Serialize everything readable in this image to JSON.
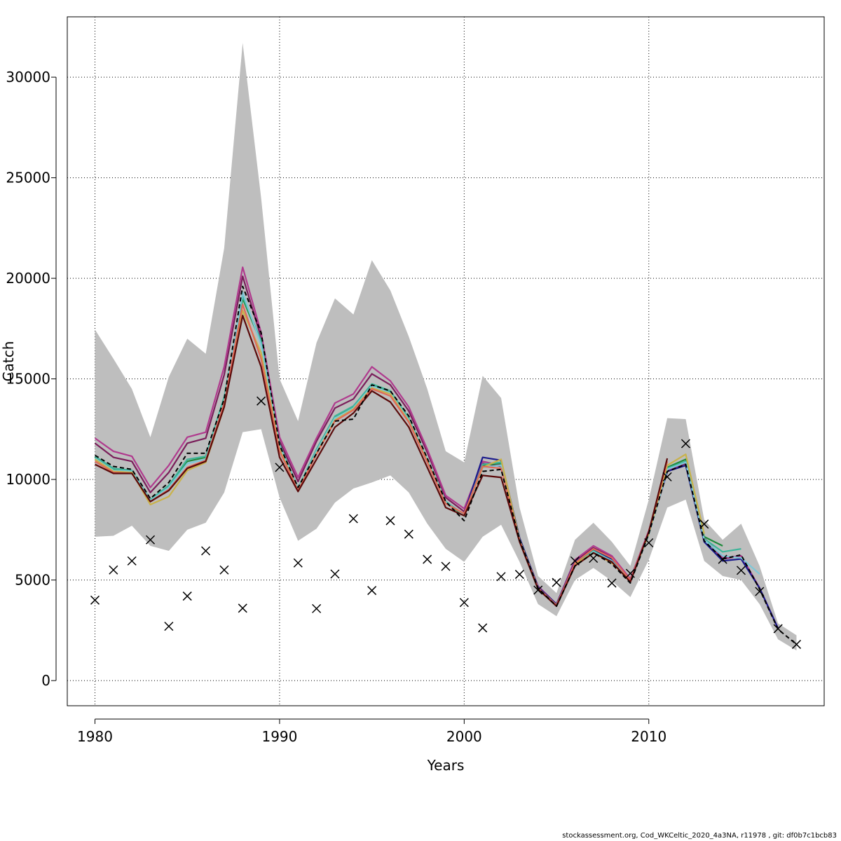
{
  "chart_data": {
    "type": "line",
    "xlabel": "Years",
    "ylabel": "Catch",
    "xlim": [
      1978.5,
      2019.5
    ],
    "ylim": [
      -1250,
      33000
    ],
    "x_ticks": [
      1980,
      1990,
      2000,
      2010
    ],
    "y_ticks": [
      0,
      5000,
      10000,
      15000,
      20000,
      25000,
      30000
    ],
    "x_tick_labels": [
      "1980",
      "1990",
      "2000",
      "2010"
    ],
    "y_tick_labels": [
      "0",
      "5000",
      "10000",
      "15000",
      "20000",
      "25000",
      "30000"
    ],
    "grid": true,
    "confidence_band": {
      "years": [
        1980,
        1981,
        1982,
        1983,
        1984,
        1985,
        1986,
        1987,
        1988,
        1989,
        1990,
        1991,
        1992,
        1993,
        1994,
        1995,
        1996,
        1997,
        1998,
        1999,
        2000,
        2001,
        2002,
        2003,
        2004,
        2005,
        2006,
        2007,
        2008,
        2009,
        2010,
        2011,
        2012,
        2013,
        2014,
        2015,
        2016,
        2017,
        2018
      ],
      "upper": [
        17450,
        16000,
        14500,
        12100,
        15100,
        17000,
        16250,
        21500,
        31700,
        24000,
        15000,
        12900,
        16800,
        19000,
        18200,
        20900,
        19400,
        17100,
        14500,
        11400,
        10850,
        15150,
        14050,
        8600,
        5200,
        4350,
        7000,
        7850,
        6900,
        5700,
        9000,
        13050,
        13000,
        8000,
        7000,
        7800,
        5700,
        2850,
        2250
      ],
      "lower": [
        7150,
        7200,
        7700,
        6700,
        6450,
        7500,
        7850,
        9350,
        12350,
        12500,
        9100,
        6950,
        7550,
        8850,
        9550,
        9850,
        10200,
        9350,
        7800,
        6550,
        5900,
        7150,
        7750,
        5900,
        3800,
        3200,
        5000,
        5600,
        4950,
        4150,
        6000,
        8600,
        9000,
        5950,
        5200,
        5000,
        3800,
        2050,
        1500
      ]
    },
    "observations": {
      "years": [
        1980,
        1981,
        1982,
        1983,
        1984,
        1985,
        1986,
        1987,
        1988,
        1989,
        1990,
        1991,
        1992,
        1993,
        1994,
        1995,
        1996,
        1997,
        1998,
        1999,
        2000,
        2001,
        2002,
        2003,
        2004,
        2005,
        2006,
        2007,
        2008,
        2009,
        2010,
        2011,
        2012,
        2013,
        2014,
        2015,
        2016,
        2017,
        2018
      ],
      "values": [
        4000,
        5500,
        5950,
        7000,
        2700,
        4200,
        6450,
        5500,
        3600,
        13900,
        10600,
        5850,
        3580,
        5300,
        8050,
        4480,
        7950,
        7280,
        6030,
        5680,
        3880,
        2620,
        5170,
        5280,
        4500,
        4880,
        5950,
        6080,
        4850,
        5330,
        6850,
        10130,
        11780,
        7780,
        6030,
        5480,
        4430,
        2580,
        1800
      ]
    },
    "series": [
      {
        "color": "#000000",
        "dashed": true,
        "years": [
          1980,
          1981,
          1982,
          1983,
          1984,
          1985,
          1986,
          1987,
          1988,
          1989,
          1990,
          1991,
          1992,
          1993,
          1994,
          1995,
          1996,
          1997,
          1998,
          1999,
          2000,
          2001,
          2002,
          2003,
          2004,
          2005,
          2006,
          2007,
          2008,
          2009,
          2010,
          2011,
          2012,
          2013,
          2014,
          2015,
          2016,
          2017,
          2018
        ],
        "values": [
          11200,
          10650,
          10500,
          9050,
          9850,
          11300,
          11300,
          14000,
          19600,
          17300,
          11700,
          9600,
          11300,
          12900,
          13000,
          14700,
          14400,
          13150,
          11050,
          8900,
          7950,
          10400,
          10500,
          7000,
          4600,
          3700,
          5700,
          6350,
          5800,
          4850,
          7300,
          10400,
          10750,
          6950,
          6050,
          6250,
          4550,
          2550,
          1800
        ]
      },
      {
        "color": "#7a1e5a",
        "dashed": false,
        "years": [
          1980,
          1981,
          1982,
          1983,
          1984,
          1985,
          1986,
          1987,
          1988,
          1989,
          1990,
          1991,
          1992,
          1993,
          1994,
          1995,
          1996,
          1997,
          1998,
          1999,
          2000,
          2001,
          2002,
          2003,
          2004,
          2005,
          2006,
          2007,
          2008,
          2009,
          2010,
          2011,
          2012,
          2013,
          2014,
          2015,
          2016,
          2017
        ],
        "values": [
          11800,
          11100,
          10900,
          9350,
          10350,
          11800,
          12050,
          15200,
          20100,
          17050,
          11900,
          9900,
          11900,
          13550,
          14000,
          15250,
          14700,
          13400,
          11350,
          9100,
          8400,
          10800,
          10650,
          7000,
          4650,
          3800,
          5950,
          6600,
          6150,
          5050,
          7400,
          10400,
          10800,
          7050,
          6050,
          6200,
          4600,
          2600
        ]
      },
      {
        "color": "#b03a8e",
        "dashed": false,
        "years": [
          1980,
          1981,
          1982,
          1983,
          1984,
          1985,
          1986,
          1987,
          1988,
          1989,
          1990,
          1991,
          1992,
          1993,
          1994,
          1995,
          1996,
          1997,
          1998,
          1999,
          2000,
          2001,
          2002,
          2003,
          2004,
          2005,
          2006,
          2007,
          2008,
          2009,
          2010,
          2011,
          2012,
          2013,
          2014,
          2015,
          2016,
          2017
        ],
        "values": [
          12050,
          11400,
          11150,
          9600,
          10700,
          12100,
          12350,
          15600,
          20550,
          17300,
          12100,
          10100,
          12050,
          13800,
          14250,
          15600,
          14900,
          13600,
          11500,
          9200,
          8550,
          10900,
          10700,
          7050,
          4700,
          3800,
          6000,
          6700,
          6200,
          5050,
          7450,
          10450,
          10850,
          7100,
          6100,
          6200,
          4600,
          2600
        ]
      },
      {
        "color": "#1a1a8c",
        "dashed": false,
        "years": [
          2000,
          2001,
          2002,
          2003,
          2004,
          2005,
          2006,
          2007,
          2008,
          2009,
          2010,
          2011,
          2012,
          2013,
          2014,
          2015,
          2016,
          2017
        ],
        "values": [
          8300,
          11100,
          10950,
          7100,
          4650,
          3800,
          5900,
          6500,
          6050,
          5000,
          7350,
          10400,
          10700,
          6900,
          5950,
          6050,
          4600,
          2600
        ]
      },
      {
        "color": "#1f8a3c",
        "dashed": false,
        "years": [
          1980,
          1981,
          1982,
          1983,
          1984,
          1985,
          1986,
          1987,
          1988,
          1989,
          1990,
          1991,
          1992,
          1993,
          1994,
          1995,
          1996,
          1997,
          1998,
          1999,
          2000,
          2001,
          2002,
          2003,
          2004,
          2005,
          2006,
          2007,
          2008,
          2009,
          2010,
          2011,
          2012,
          2013,
          2014
        ],
        "values": [
          11100,
          10500,
          10400,
          8950,
          9650,
          10900,
          11100,
          14000,
          19000,
          16800,
          11700,
          9500,
          11450,
          13100,
          13600,
          14700,
          14350,
          13000,
          10950,
          8850,
          8200,
          10700,
          10800,
          7000,
          4600,
          3750,
          5800,
          6450,
          5950,
          4950,
          7300,
          10600,
          11000,
          7150,
          6700
        ]
      },
      {
        "color": "#3fb59a",
        "dashed": false,
        "years": [
          1980,
          1981,
          1982,
          1983,
          1984,
          1985,
          1986,
          1987,
          1988,
          1989,
          1990,
          1991,
          1992,
          1993,
          1994,
          1995,
          1996,
          1997,
          1998,
          1999,
          2000,
          2001,
          2002,
          2003,
          2004,
          2005,
          2006,
          2007,
          2008,
          2009,
          2010,
          2011,
          2012,
          2013,
          2014,
          2015
        ],
        "values": [
          11150,
          10550,
          10450,
          9000,
          9700,
          11000,
          11150,
          14100,
          19100,
          16900,
          11750,
          9550,
          11500,
          13150,
          13650,
          14750,
          14400,
          13050,
          11000,
          8900,
          8250,
          10750,
          10850,
          7000,
          4600,
          3750,
          5800,
          6450,
          5950,
          4950,
          7300,
          10550,
          10900,
          7050,
          6400,
          6550
        ]
      },
      {
        "color": "#7ec8d8",
        "dashed": false,
        "years": [
          1980,
          1981,
          1982,
          1983,
          1984,
          1985,
          1986,
          1987,
          1988,
          1989,
          1990,
          1991,
          1992,
          1993,
          1994,
          1995,
          1996,
          1997,
          1998,
          1999,
          2000,
          2001,
          2002,
          2003,
          2004,
          2005,
          2006,
          2007,
          2008,
          2009,
          2010,
          2011,
          2012,
          2013,
          2014,
          2015,
          2016
        ],
        "values": [
          11050,
          10450,
          10400,
          8950,
          9600,
          10800,
          11000,
          13900,
          19300,
          16700,
          11650,
          9500,
          11400,
          13050,
          13550,
          14650,
          14300,
          12950,
          10950,
          8850,
          8250,
          10600,
          10700,
          6950,
          4600,
          3750,
          5750,
          6400,
          5950,
          4950,
          7250,
          10500,
          10850,
          7000,
          6200,
          6100,
          5300
        ]
      },
      {
        "color": "#c9b24a",
        "dashed": false,
        "years": [
          1980,
          1981,
          1982,
          1983,
          1984,
          1985,
          1986,
          1987,
          1988,
          1989,
          1990,
          1991,
          1992,
          1993,
          1994,
          1995,
          1996,
          1997,
          1998,
          1999,
          2000,
          2001,
          2002,
          2003,
          2004,
          2005,
          2006,
          2007,
          2008,
          2009,
          2010,
          2011,
          2012,
          2013
        ],
        "values": [
          11000,
          10400,
          10350,
          8750,
          9150,
          10450,
          10850,
          13600,
          18400,
          16300,
          11500,
          9450,
          11300,
          12950,
          13500,
          14550,
          14250,
          12900,
          10900,
          8800,
          8300,
          10600,
          11000,
          7000,
          4600,
          3750,
          5800,
          6350,
          5850,
          4950,
          7300,
          10700,
          11250,
          7300
        ]
      },
      {
        "color": "#e06a5a",
        "dashed": false,
        "years": [
          1980,
          1981,
          1982,
          1983,
          1984,
          1985,
          1986,
          1987,
          1988,
          1989,
          1990,
          1991,
          1992,
          1993,
          1994,
          1995,
          1996,
          1997,
          1998,
          1999,
          2000,
          2001,
          2002,
          2003,
          2004,
          2005,
          2006,
          2007,
          2008,
          2009,
          2010,
          2011
        ],
        "values": [
          10900,
          10350,
          10300,
          8900,
          9500,
          10600,
          10950,
          13800,
          18700,
          16000,
          11400,
          9450,
          11250,
          12900,
          13450,
          14500,
          14150,
          12850,
          10850,
          8800,
          8300,
          10650,
          10550,
          6950,
          4600,
          3750,
          5850,
          6550,
          6100,
          5000,
          7400,
          10900
        ]
      },
      {
        "color": "#5a0a0a",
        "dashed": false,
        "years": [
          1980,
          1981,
          1982,
          1983,
          1984,
          1985,
          1986,
          1987,
          1988,
          1989,
          1990,
          1991,
          1992,
          1993,
          1994,
          1995,
          1996,
          1997,
          1998,
          1999,
          2000,
          2001,
          2002,
          2003,
          2004,
          2005,
          2006,
          2007,
          2008,
          2009,
          2010,
          2011
        ],
        "values": [
          10750,
          10300,
          10300,
          8900,
          9450,
          10550,
          10900,
          13600,
          18150,
          15600,
          11100,
          9400,
          11000,
          12600,
          13300,
          14400,
          13850,
          12600,
          10600,
          8600,
          8200,
          10200,
          10100,
          6900,
          4550,
          3700,
          5700,
          6350,
          5900,
          4900,
          7400,
          11050
        ]
      }
    ]
  },
  "footer": {
    "text": "stockassessment.org, Cod_WKCeltic_2020_4a3NA, r11978 , git: df0b7c1bcb83"
  },
  "colors": {
    "band": "#bebebe",
    "grid": "#000000",
    "axis": "#000000"
  }
}
